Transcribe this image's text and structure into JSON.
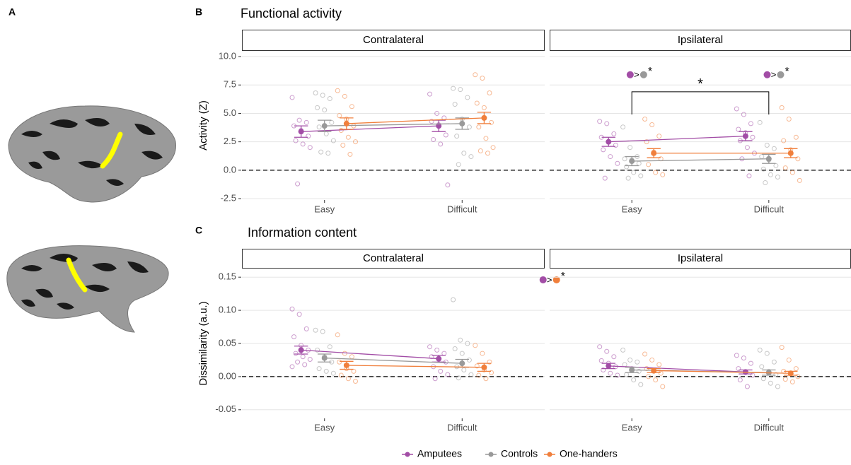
{
  "figure": {
    "panel_a": "A"
  },
  "legend": {
    "position": "bottom",
    "series": [
      {
        "name": "Amputees",
        "color": "#a24da6"
      },
      {
        "name": "Controls",
        "color": "#999999"
      },
      {
        "name": "One-handers",
        "color": "#f07f3c"
      }
    ]
  },
  "chart_data": [
    {
      "type": "dot-interval",
      "panel": "B",
      "title": "Functional activity",
      "ylabel": "Activity (Z)",
      "categories": [
        "Easy",
        "Difficult"
      ],
      "xlim": [
        0.4,
        2.6
      ],
      "ylim": [
        -2.62,
        10.5
      ],
      "yticks": [
        -2.5,
        {
          "value": 0,
          "label": "0.0"
        },
        2.5,
        {
          "value": 5,
          "label": "5.0"
        },
        7.5,
        {
          "value": 10,
          "label": "10.0"
        }
      ],
      "grid": true,
      "reference_line": 0,
      "facets": [
        {
          "name": "Contralateral",
          "means": [
            [
              3.4,
              3.9
            ],
            [
              3.9,
              4.1
            ],
            [
              4.1,
              4.6
            ]
          ],
          "errors": [
            [
              0.5,
              0.5
            ],
            [
              0.5,
              0.5
            ],
            [
              0.5,
              0.5
            ]
          ],
          "points": [
            [
              [
                6.4,
                4.4,
                4.2,
                3.9,
                3.5,
                3.0,
                2.6,
                2.3,
                2.0,
                -1.2
              ],
              [
                6.7,
                5.0,
                4.6,
                4.3,
                4.0,
                3.1,
                2.7,
                2.3,
                -1.3
              ]
            ],
            [
              [
                6.8,
                6.6,
                6.3,
                5.5,
                5.3,
                4.2,
                3.8,
                3.2,
                2.6,
                1.6,
                1.5
              ],
              [
                7.2,
                7.1,
                6.4,
                5.8,
                4.5,
                3.8,
                3.0,
                1.5,
                1.2,
                0.5
              ]
            ],
            [
              [
                7.0,
                6.5,
                5.6,
                4.8,
                4.5,
                3.9,
                3.5,
                2.9,
                2.5,
                2.2,
                1.4
              ],
              [
                8.4,
                8.1,
                6.8,
                5.9,
                5.5,
                4.2,
                3.8,
                2.8,
                2.0,
                1.7,
                1.5
              ]
            ]
          ],
          "annotations": []
        },
        {
          "name": "Ipsilateral",
          "means": [
            [
              2.5,
              3.0
            ],
            [
              0.8,
              1.0
            ],
            [
              1.5,
              1.5
            ]
          ],
          "errors": [
            [
              0.4,
              0.4
            ],
            [
              0.4,
              0.4
            ],
            [
              0.4,
              0.4
            ]
          ],
          "points": [
            [
              [
                4.3,
                4.1,
                3.2,
                2.9,
                2.5,
                2.2,
                1.8,
                1.2,
                0.6,
                -0.7
              ],
              [
                5.4,
                4.9,
                4.1,
                3.6,
                3.3,
                2.9,
                2.6,
                2.0,
                1.5,
                1.0,
                -0.5
              ]
            ],
            [
              [
                3.8,
                2.0,
                1.2,
                1.0,
                0.9,
                0.6,
                0.3,
                -0.2,
                -0.5,
                -0.7
              ],
              [
                4.2,
                2.2,
                1.9,
                1.2,
                0.9,
                0.4,
                0.1,
                -0.4,
                -0.6,
                -1.1
              ]
            ],
            [
              [
                4.5,
                4.0,
                3.0,
                2.5,
                1.6,
                1.0,
                0.5,
                -0.2,
                -0.4
              ],
              [
                5.5,
                4.5,
                2.9,
                2.6,
                1.8,
                1.0,
                0.2,
                -0.2,
                -0.9
              ]
            ]
          ],
          "annotations": [
            {
              "x": 1.05,
              "y": 8.4,
              "left": "#a24da6",
              "right": "#999999",
              "sign": ">",
              "mark": "*"
            },
            {
              "x": 2.05,
              "y": 8.4,
              "left": "#a24da6",
              "right": "#999999",
              "sign": ">",
              "mark": "*"
            }
          ],
          "bracket": {
            "from": 1,
            "to": 2,
            "y": 6.9,
            "drop": 4.9,
            "mark": "*"
          }
        }
      ]
    },
    {
      "type": "dot-interval",
      "panel": "C",
      "title": "Information content",
      "ylabel": "Dissimilarity (a.u.)",
      "categories": [
        "Easy",
        "Difficult"
      ],
      "xlim": [
        0.4,
        2.6
      ],
      "ylim": [
        -0.063,
        0.163
      ],
      "yticks": [
        -0.05,
        {
          "value": 0,
          "label": "0.00"
        },
        0.05,
        {
          "value": 0.1,
          "label": "0.10"
        },
        0.15
      ],
      "grid": true,
      "reference_line": 0,
      "facets": [
        {
          "name": "Contralateral",
          "means": [
            [
              0.04,
              0.027
            ],
            [
              0.028,
              0.02
            ],
            [
              0.017,
              0.014
            ]
          ],
          "errors": [
            [
              0.006,
              0.005
            ],
            [
              0.006,
              0.006
            ],
            [
              0.006,
              0.006
            ]
          ],
          "points": [
            [
              [
                0.102,
                0.094,
                0.072,
                0.06,
                0.047,
                0.04,
                0.035,
                0.03,
                0.026,
                0.022,
                0.018,
                0.015
              ],
              [
                0.045,
                0.04,
                0.035,
                0.03,
                0.026,
                0.022,
                0.015,
                0.008,
                0.003,
                -0.003
              ]
            ],
            [
              [
                0.07,
                0.068,
                0.045,
                0.04,
                0.03,
                0.022,
                0.012,
                0.008,
                0.005
              ],
              [
                0.116,
                0.055,
                0.05,
                0.042,
                0.035,
                0.025,
                0.015,
                0.01,
                0.003,
                -0.002
              ]
            ],
            [
              [
                0.063,
                0.035,
                0.03,
                0.022,
                0.012,
                0.008,
                0.002,
                -0.003,
                -0.007
              ],
              [
                0.047,
                0.035,
                0.022,
                0.016,
                0.01,
                0.006,
                0.002,
                -0.003
              ]
            ]
          ],
          "annotations": [
            {
              "x": 2.65,
              "y": 0.146,
              "left": "#a24da6",
              "right": "#f07f3c",
              "sign": ">",
              "mark": "*"
            }
          ]
        },
        {
          "name": "Ipsilateral",
          "means": [
            [
              0.016,
              0.007
            ],
            [
              0.01,
              0.006
            ],
            [
              0.009,
              0.005
            ]
          ],
          "errors": [
            [
              0.004,
              0.003
            ],
            [
              0.004,
              0.004
            ],
            [
              0.003,
              0.003
            ]
          ],
          "points": [
            [
              [
                0.045,
                0.038,
                0.03,
                0.024,
                0.02,
                0.015,
                0.01,
                0.005,
                0.002
              ],
              [
                0.032,
                0.028,
                0.02,
                0.012,
                0.006,
                0.002,
                -0.005,
                -0.015
              ]
            ],
            [
              [
                0.04,
                0.025,
                0.022,
                0.018,
                0.012,
                0.008,
                0.003,
                -0.005,
                -0.012
              ],
              [
                0.04,
                0.035,
                0.022,
                0.015,
                0.008,
                0.003,
                -0.003,
                -0.01,
                -0.015
              ]
            ],
            [
              [
                0.034,
                0.025,
                0.018,
                0.012,
                0.008,
                0.005,
                0.0,
                -0.005,
                -0.015
              ],
              [
                0.044,
                0.025,
                0.012,
                0.008,
                0.004,
                0.0,
                -0.004,
                -0.008
              ]
            ]
          ],
          "annotations": []
        }
      ]
    }
  ]
}
